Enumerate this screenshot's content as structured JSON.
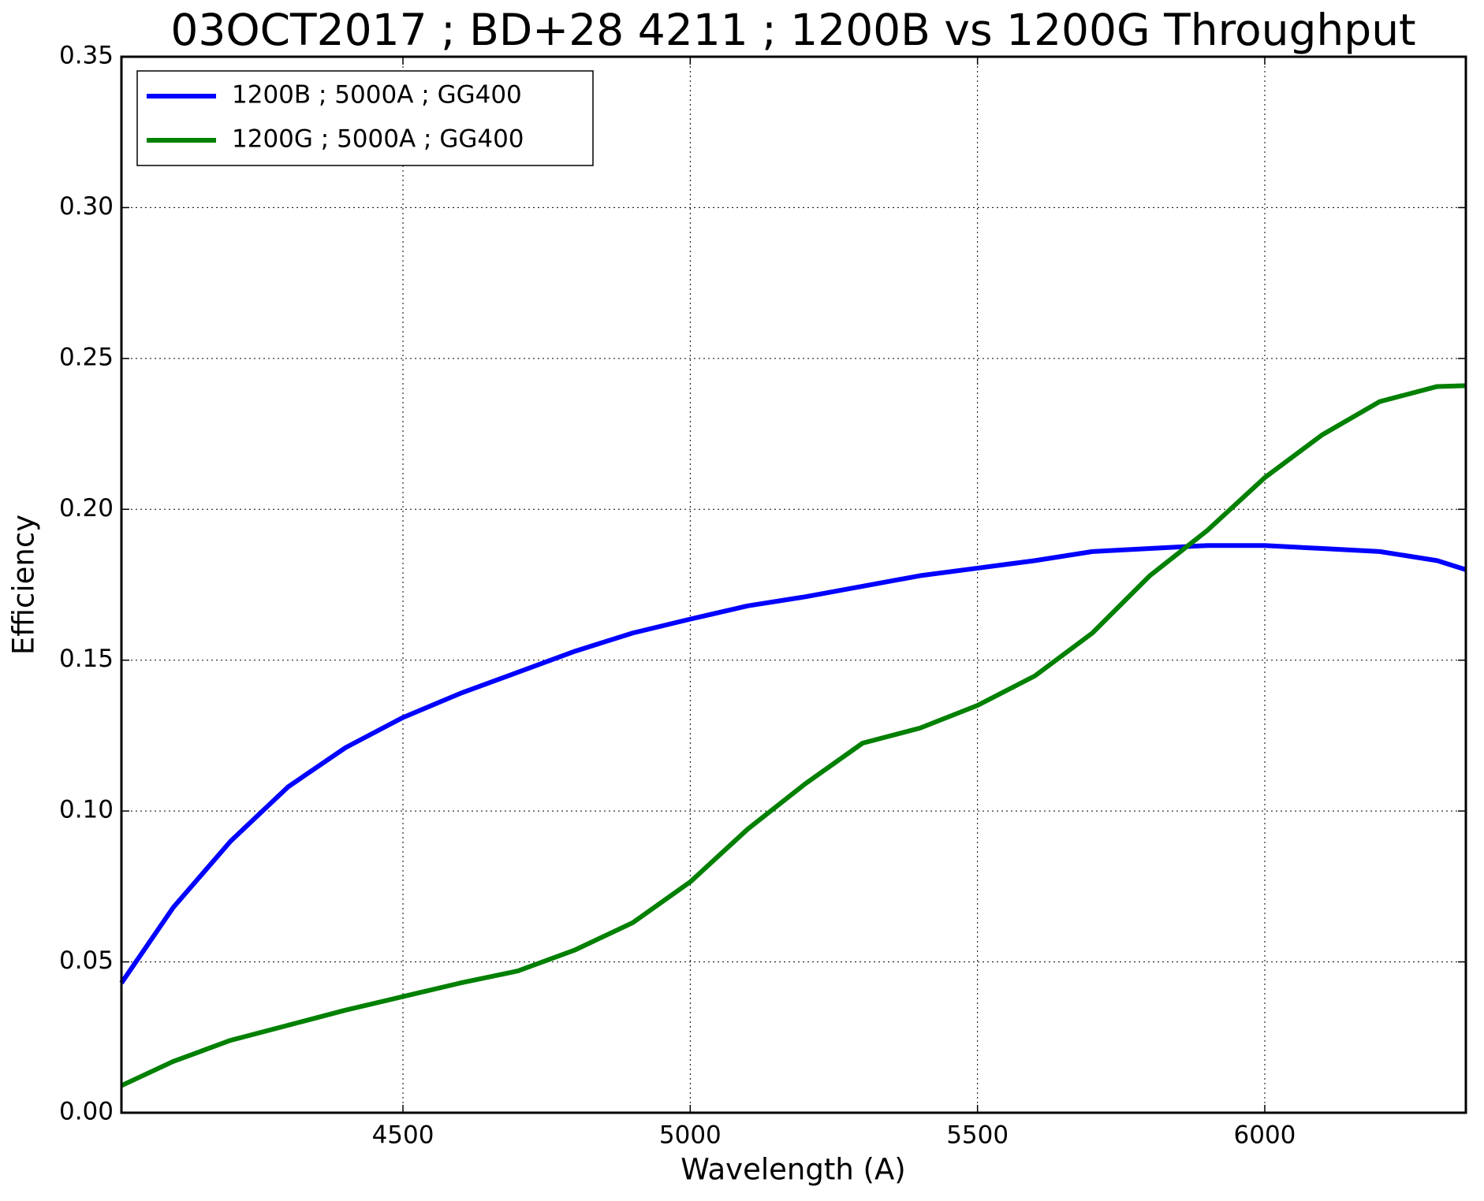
{
  "chart_data": {
    "type": "line",
    "title": "03OCT2017 ; BD+28 4211 ; 1200B vs 1200G Throughput",
    "x_label": "Wavelength (A)",
    "y_label": "Efficiency",
    "x": [
      4010,
      4100,
      4200,
      4300,
      4400,
      4500,
      4600,
      4700,
      4800,
      4900,
      5000,
      5100,
      5200,
      5300,
      5400,
      5500,
      5600,
      5700,
      5800,
      5900,
      6000,
      6100,
      6200,
      6300,
      6350
    ],
    "series": [
      {
        "name": "1200B ; 5000A ; GG400",
        "color": "#0000ff",
        "values": [
          0.043,
          0.068,
          0.09,
          0.108,
          0.121,
          0.131,
          0.139,
          0.146,
          0.153,
          0.159,
          0.1636,
          0.168,
          0.171,
          0.1745,
          0.178,
          0.1805,
          0.183,
          0.186,
          0.187,
          0.188,
          0.188,
          0.187,
          0.186,
          0.183,
          0.18
        ]
      },
      {
        "name": "1200G ; 5000A ; GG400",
        "color": "#008000",
        "values": [
          0.009,
          0.017,
          0.024,
          0.029,
          0.034,
          0.0385,
          0.043,
          0.047,
          0.054,
          0.063,
          0.0765,
          0.094,
          0.109,
          0.1225,
          0.1275,
          0.135,
          0.1448,
          0.159,
          0.178,
          0.193,
          0.2105,
          0.2247,
          0.2357,
          0.2407,
          0.241
        ]
      }
    ],
    "xlim": [
      4010,
      6350
    ],
    "ylim": [
      0,
      0.35
    ],
    "xticks": [
      4500,
      5000,
      5500,
      6000
    ],
    "yticks": [
      {
        "value": 0,
        "label": "0.00"
      },
      {
        "value": 0.05,
        "label": "0.05"
      },
      {
        "value": 0.1,
        "label": "0.10"
      },
      {
        "value": 0.15,
        "label": "0.15"
      },
      {
        "value": 0.2,
        "label": "0.20"
      },
      {
        "value": 0.25,
        "label": "0.25"
      },
      {
        "value": 0.3,
        "label": "0.30"
      },
      {
        "value": 0.35,
        "label": "0.35"
      }
    ],
    "grid": true,
    "legend_position": "upper left"
  }
}
